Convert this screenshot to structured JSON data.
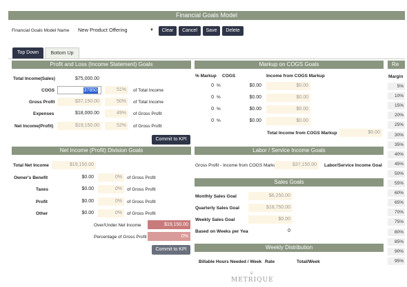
{
  "title": "Financial Goals Model",
  "model": {
    "label": "Financial Goals Model Name",
    "selected": "New Product Offering",
    "buttons": [
      "Clear",
      "Cancel",
      "Save",
      "Delete"
    ]
  },
  "tabs": [
    "Top Down",
    "Bottom Up"
  ],
  "pl": {
    "title": "Profit and Loss (Income Statement) Goals",
    "total_income_label": "Total Income(Sales)",
    "total_income": "$75,000.00",
    "rows": [
      {
        "label": "COGS",
        "value": "37850",
        "pct": "51%",
        "of": "of Total Income"
      },
      {
        "label": "Gross Profit",
        "value": "$37,150.00",
        "pct": "50%",
        "of": "of Total Income"
      },
      {
        "label": "Expenses",
        "value": "$18,000.00",
        "pct": "49%",
        "of": "of Gross Profit"
      },
      {
        "label": "Net Income(Profit)",
        "value": "$19,150.00",
        "pct": "52%",
        "of": "of Gross Profit"
      }
    ],
    "commit": "Commit to KPI"
  },
  "ni": {
    "title": "Net Income (Profit) Division Goals",
    "total_label": "Total Net Income",
    "total": "$19,150.00",
    "rows": [
      {
        "label": "Owner's Benefit",
        "value": "$0.00",
        "pct": "0%",
        "of": "of Gross Profit"
      },
      {
        "label": "Taxes",
        "value": "$0.00",
        "pct": "0%",
        "of": "of Gross Profit"
      },
      {
        "label": "Profit",
        "value": "$0.00",
        "pct": "0%",
        "of": "of Gross Profit"
      },
      {
        "label": "Other",
        "value": "$0.00",
        "pct": "0%",
        "of": "of Gross Profit"
      }
    ],
    "over_under_label": "Over/Under Net Income",
    "over_under": "$19,150.00",
    "pct_gp_label": "Percentage of Gross Profit",
    "pct_gp": "0%",
    "commit": "Commit to KPI"
  },
  "markup": {
    "title": "Markup on COGS Goals",
    "col_markup": "% Markup",
    "col_cogs": "COGS",
    "col_income": "Income from COGS Markup",
    "rows": [
      {
        "markup": "0",
        "unit": "%",
        "cogs": "$0.00",
        "income": "$0.00"
      },
      {
        "markup": "0",
        "unit": "%",
        "cogs": "$0.00",
        "income": "$0.00"
      },
      {
        "markup": "0",
        "unit": "%",
        "cogs": "$0.00",
        "income": "$0.00"
      },
      {
        "markup": "0",
        "unit": "%",
        "cogs": "$0.00",
        "income": "$0.00"
      }
    ],
    "total_label": "Total Income from COGS Markup",
    "total": "$0.00"
  },
  "labor": {
    "title": "Labor / Service Income Goals",
    "gp_label": "Gross Profit - Income from COGS Markup",
    "gp_value": "$37,150.00",
    "right_label": "Labor/Service Income Goal"
  },
  "sales": {
    "title": "Sales Goals",
    "rows": [
      {
        "label": "Monthly Sales Goal",
        "value": "$6,250.00"
      },
      {
        "label": "Quarterly Sales Goal",
        "value": "$18,750.00"
      },
      {
        "label": "Weekly Sales Goal",
        "value": "$0.00"
      },
      {
        "label": "Based on Weeks per Year",
        "value": "0"
      }
    ]
  },
  "weekly": {
    "title": "Weekly Distribution",
    "cols": [
      "Billable Hours Needed / Week",
      "Rate",
      "Total/Week"
    ]
  },
  "margin": {
    "title": "Re",
    "label": "Margin",
    "values": [
      "5%",
      "10%",
      "15%",
      "20%",
      "25%",
      "30%",
      "35%",
      "40%",
      "45%",
      "50%",
      "55%",
      "60%",
      "65%",
      "70%",
      "75%",
      "80%",
      "85%",
      "90%",
      "95%"
    ]
  },
  "logo": "METRIQUE"
}
